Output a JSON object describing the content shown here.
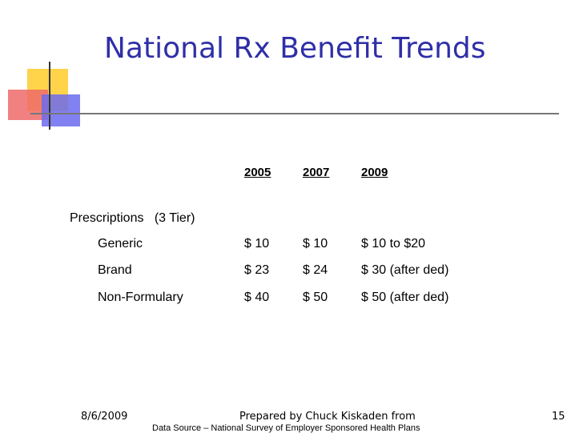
{
  "slide": {
    "title": "National Rx Benefit Trends"
  },
  "table": {
    "years": [
      "2005",
      "2007",
      "2009"
    ],
    "section_label": "Prescriptions   (3 Tier)",
    "rows": [
      {
        "label": "Generic",
        "values": [
          "$ 10",
          "$ 10",
          "$ 10 to $20"
        ]
      },
      {
        "label": "Brand",
        "values": [
          "$ 23",
          "$ 24",
          "$ 30 (after ded)"
        ]
      },
      {
        "label": "Non-Formulary",
        "values": [
          "$ 40",
          "$ 50",
          "$ 50 (after ded)"
        ]
      }
    ]
  },
  "footer": {
    "date": "8/6/2009",
    "prepared_by": "Prepared by Chuck Kiskaden from",
    "source": "Data Source – National Survey of Employer Sponsored Health Plans",
    "page_number": "15"
  },
  "colors": {
    "title": "#2f2fa8",
    "deco_yellow": "#ffd34a",
    "deco_red": "#ef6a6a",
    "deco_blue": "#6b6bef"
  }
}
